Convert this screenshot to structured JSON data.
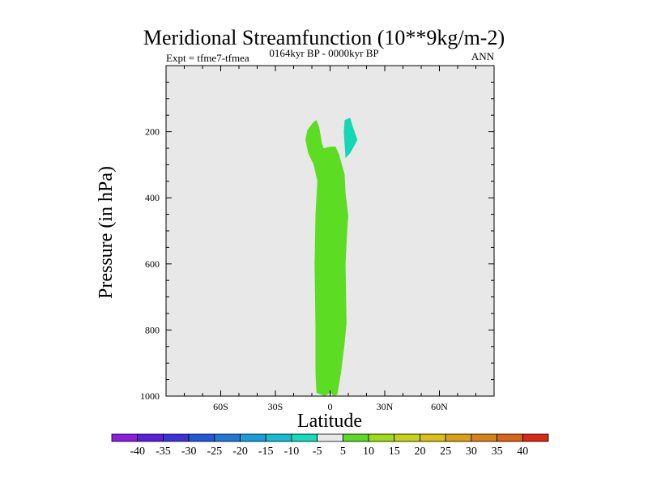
{
  "chart_data": {
    "type": "contour",
    "title": "Meridional Streamfunction (10**9kg/m-2)",
    "left_string": "Expt = tfme7-tfmea",
    "center_string": "0164kyr BP - 0000kyr BP",
    "right_string": "ANN",
    "xlabel": "Latitude",
    "ylabel": "Pressure (in hPa)",
    "xlim": [
      -90,
      90
    ],
    "ylim": [
      1000,
      0
    ],
    "x_ticks": [
      {
        "value": -60,
        "label": "60S"
      },
      {
        "value": -30,
        "label": "30S"
      },
      {
        "value": 0,
        "label": "0"
      },
      {
        "value": 30,
        "label": "30N"
      },
      {
        "value": 60,
        "label": "60N"
      }
    ],
    "y_ticks": [
      {
        "value": 200,
        "label": "200"
      },
      {
        "value": 400,
        "label": "400"
      },
      {
        "value": 600,
        "label": "600"
      },
      {
        "value": 800,
        "label": "800"
      },
      {
        "value": 1000,
        "label": "1000"
      }
    ],
    "background_color": "#e8e8e8",
    "regions": [
      {
        "name": "positive-cell",
        "level_range": [
          5,
          10
        ],
        "color": "#5ddc24",
        "polygon": [
          [
            -7.5,
            990
          ],
          [
            -8,
            930
          ],
          [
            -8,
            800
          ],
          [
            -8.5,
            600
          ],
          [
            -8,
            450
          ],
          [
            -7,
            350
          ],
          [
            -9,
            300
          ],
          [
            -12,
            265
          ],
          [
            -13.5,
            225
          ],
          [
            -12.5,
            195
          ],
          [
            -9,
            170
          ],
          [
            -7.5,
            165
          ],
          [
            -6,
            185
          ],
          [
            -4.5,
            235
          ],
          [
            -3.5,
            250
          ],
          [
            0,
            245
          ],
          [
            3,
            245
          ],
          [
            5,
            270
          ],
          [
            8,
            330
          ],
          [
            8.5,
            385
          ],
          [
            10,
            455
          ],
          [
            9.5,
            490
          ],
          [
            8.5,
            600
          ],
          [
            9,
            780
          ],
          [
            8,
            840
          ],
          [
            6,
            930
          ],
          [
            4,
            995
          ],
          [
            2,
            1000
          ],
          [
            0,
            990
          ],
          [
            -3,
            1000
          ]
        ]
      },
      {
        "name": "negative-cell",
        "level_range": [
          -10,
          -5
        ],
        "color": "#14d8b4",
        "polygon": [
          [
            8,
            165
          ],
          [
            11,
            158
          ],
          [
            12.5,
            185
          ],
          [
            15,
            225
          ],
          [
            11,
            265
          ],
          [
            8.5,
            280
          ],
          [
            8,
            240
          ],
          [
            7.5,
            200
          ]
        ]
      }
    ],
    "colorbar": {
      "labels": [
        "-40",
        "-35",
        "-30",
        "-25",
        "-20",
        "-15",
        "-10",
        "-5",
        "5",
        "10",
        "15",
        "20",
        "25",
        "30",
        "35",
        "40"
      ],
      "colors": [
        "#8c1ce6",
        "#5a1ee0",
        "#3c32dc",
        "#1e5ade",
        "#1e78dc",
        "#14a0dc",
        "#14bed2",
        "#14dcbe",
        "#e8e8e8",
        "#5adc24",
        "#a0dc14",
        "#c8d214",
        "#dcbe14",
        "#dca014",
        "#dc8214",
        "#dc6414",
        "#dc2814"
      ]
    }
  }
}
